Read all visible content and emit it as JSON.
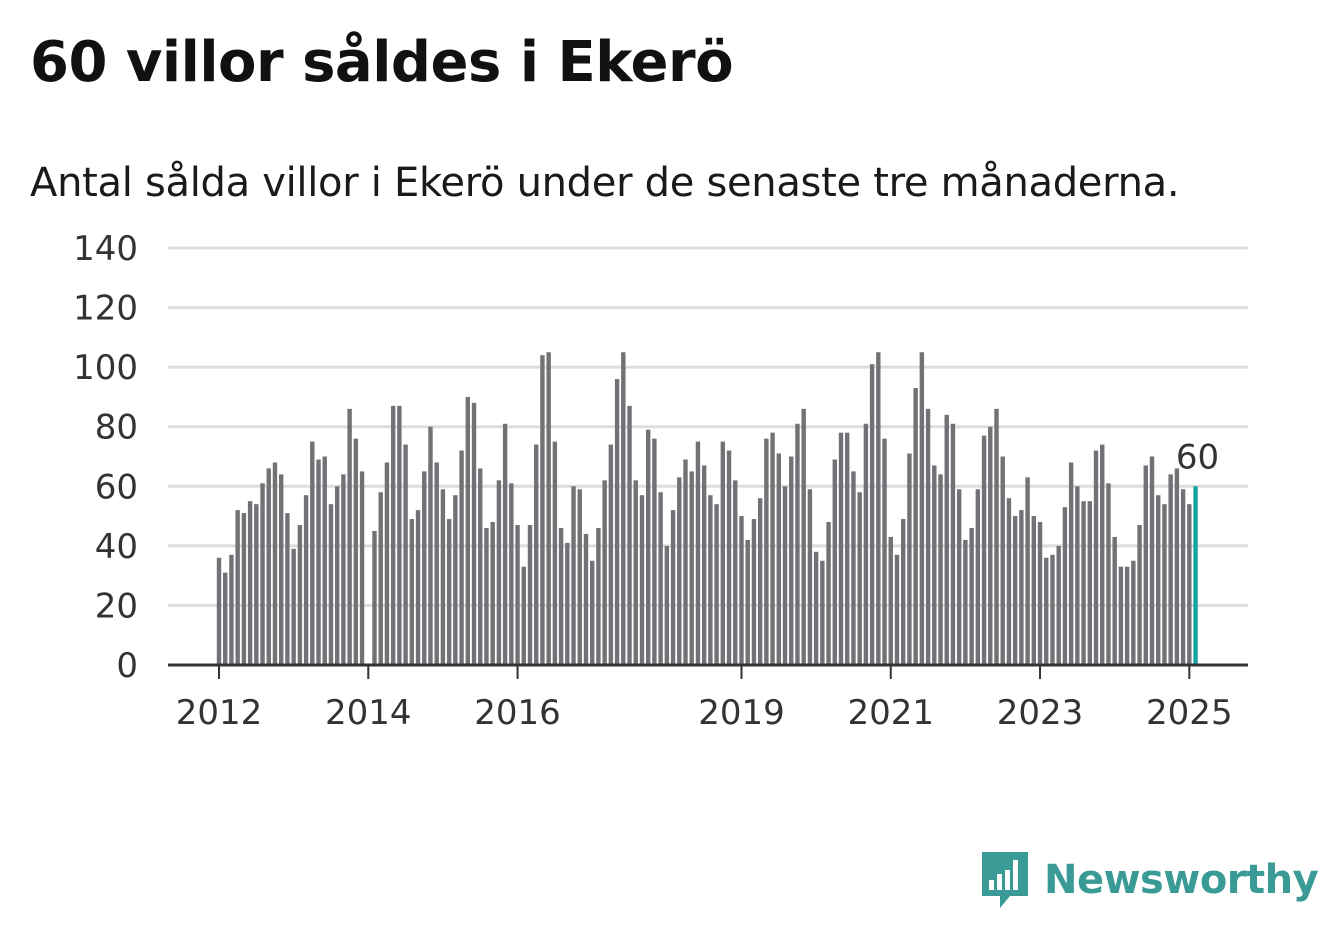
{
  "header": {
    "title": "60 villor såldes i Ekerö",
    "subtitle": "Antal sålda villor i Ekerö under de senaste tre månaderna."
  },
  "branding": {
    "logo_text": "Newsworthy",
    "logo_icon": "bar-chart-speech-bubble-icon"
  },
  "colors": {
    "bar": "#727176",
    "highlight": "#14a2a0",
    "grid": "#dddddd",
    "axis": "#333333",
    "brand": "#3a9a96"
  },
  "chart_data": {
    "type": "bar",
    "title": "60 villor såldes i Ekerö",
    "subtitle": "Antal sålda villor i Ekerö under de senaste tre månaderna.",
    "x_ticks": [
      "2012",
      "2014",
      "2016",
      "2019",
      "2021",
      "2023",
      "2025"
    ],
    "y_ticks": [
      "0",
      "20",
      "40",
      "60",
      "80",
      "100",
      "120",
      "140"
    ],
    "ylim": [
      0,
      140
    ],
    "grid": true,
    "start_period": "2012-01",
    "frequency": "monthly",
    "highlight_label": "60",
    "values": [
      36,
      31,
      37,
      52,
      51,
      55,
      54,
      61,
      66,
      68,
      64,
      51,
      39,
      47,
      57,
      75,
      69,
      70,
      54,
      60,
      64,
      86,
      76,
      65,
      0,
      45,
      58,
      68,
      87,
      87,
      74,
      49,
      52,
      65,
      80,
      68,
      59,
      49,
      57,
      72,
      90,
      88,
      66,
      46,
      48,
      62,
      81,
      61,
      47,
      33,
      47,
      74,
      104,
      105,
      75,
      46,
      41,
      60,
      59,
      44,
      35,
      46,
      62,
      74,
      96,
      105,
      87,
      62,
      57,
      79,
      76,
      58,
      40,
      52,
      63,
      69,
      65,
      75,
      67,
      57,
      54,
      75,
      72,
      62,
      50,
      42,
      49,
      56,
      76,
      78,
      71,
      60,
      70,
      81,
      86,
      59,
      38,
      35,
      48,
      69,
      78,
      78,
      65,
      58,
      81,
      101,
      105,
      76,
      43,
      37,
      49,
      71,
      93,
      105,
      86,
      67,
      64,
      84,
      81,
      59,
      42,
      46,
      59,
      77,
      80,
      86,
      70,
      56,
      50,
      52,
      63,
      50,
      48,
      36,
      37,
      40,
      53,
      68,
      60,
      55,
      55,
      72,
      74,
      61,
      43,
      33,
      33,
      35,
      47,
      67,
      70,
      57,
      54,
      64,
      66,
      59,
      54,
      60
    ]
  }
}
